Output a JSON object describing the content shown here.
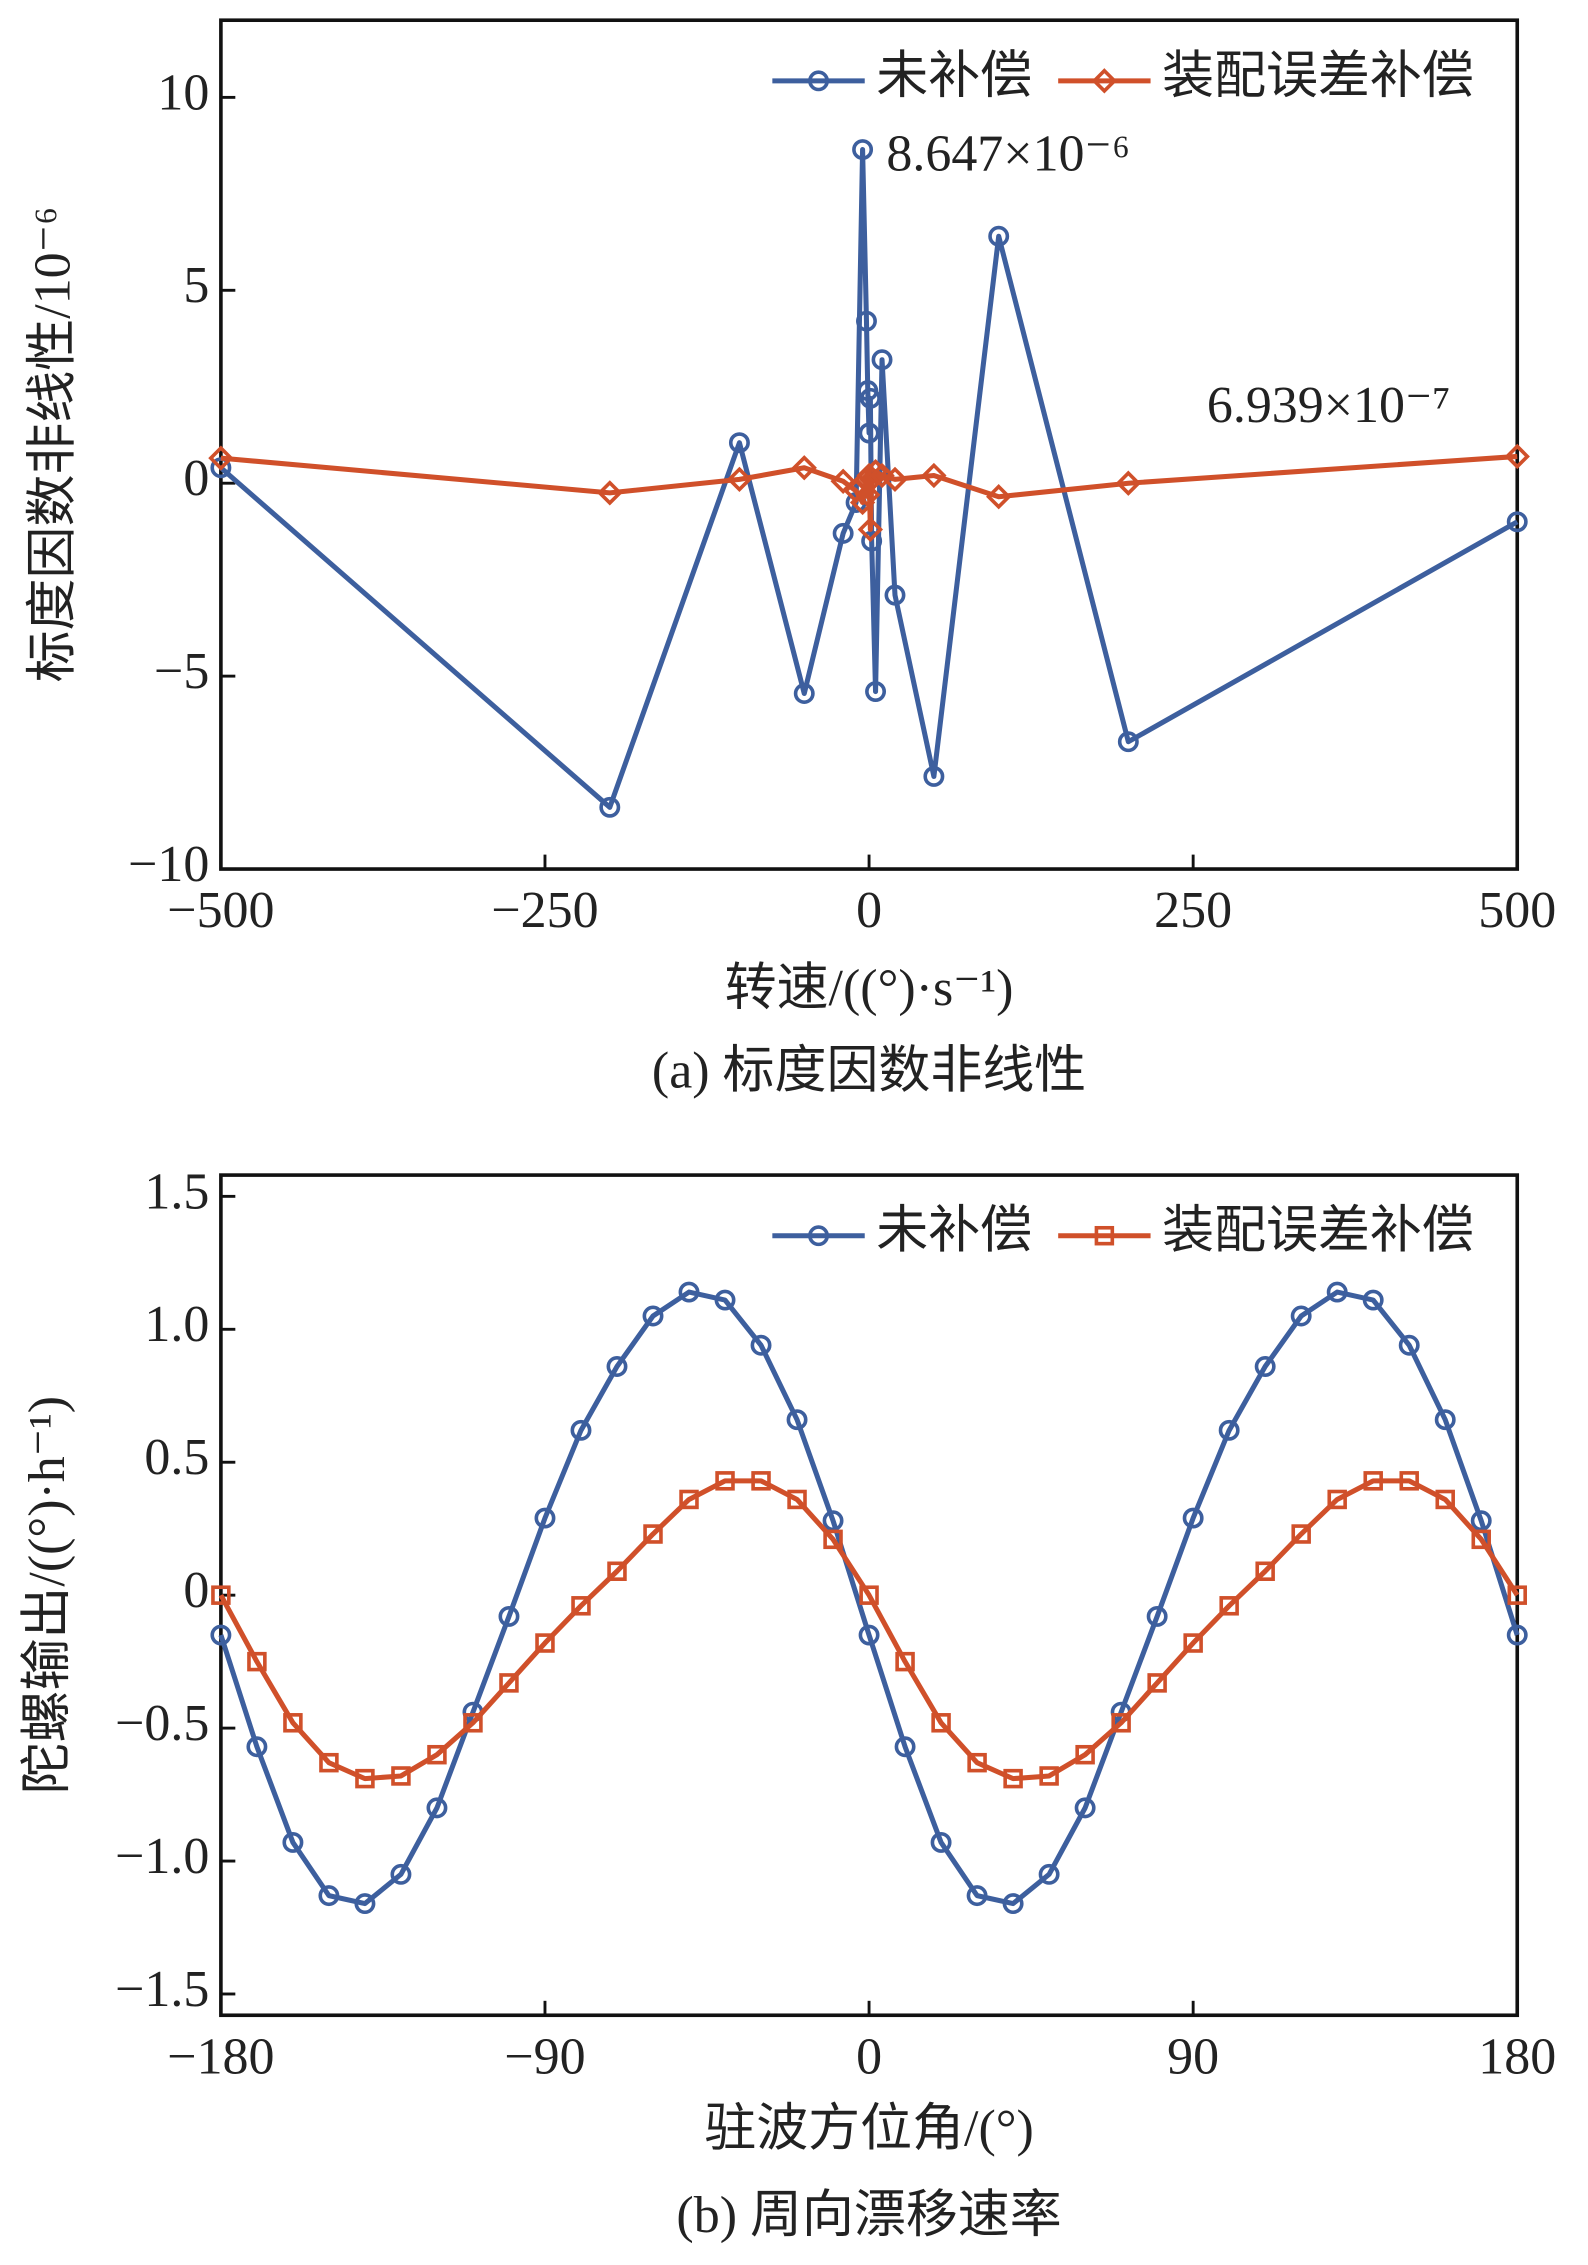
{
  "chart_data": [
    {
      "type": "line",
      "caption": "(a) 标度因数非线性",
      "x_label": "转速/((°)·s⁻¹)",
      "y_label": "标度因数非线性/10⁻⁶",
      "annotations": [
        "8.647×10⁻⁶",
        "6.939×10⁻⁷"
      ],
      "x": [
        -500,
        -200,
        -100,
        -50,
        -20,
        -10,
        -5,
        -2,
        -1,
        0,
        1,
        2,
        5,
        10,
        20,
        50,
        100,
        200,
        500
      ],
      "series": [
        {
          "name": "未补偿",
          "color": "#3d5f9e",
          "marker": "circle",
          "values": [
            0.4,
            -8.4,
            1.05,
            -5.45,
            -1.3,
            -0.5,
            8.647,
            4.2,
            2.4,
            1.3,
            2.2,
            -1.5,
            -5.4,
            3.2,
            -2.9,
            -7.6,
            6.4,
            -6.7,
            -1.0
          ]
        },
        {
          "name": "装配误差补偿",
          "color": "#d0502a",
          "marker": "diamond",
          "values": [
            0.65,
            -0.25,
            0.1,
            0.4,
            0.05,
            -0.2,
            -0.5,
            0.1,
            -0.3,
            0.2,
            -1.2,
            0.1,
            0.3,
            0.2,
            0.1,
            0.2,
            -0.35,
            0,
            0.6939
          ]
        }
      ],
      "xlim": [
        -500,
        500
      ],
      "xticks": [
        {
          "value": -500,
          "label": "−500"
        },
        {
          "value": -250,
          "label": "−250"
        },
        0,
        250,
        500
      ],
      "ylim": [
        -10,
        12
      ],
      "yticks": [
        {
          "value": -10,
          "label": "−10"
        },
        {
          "value": -5,
          "label": "−5"
        },
        0,
        5,
        10
      ],
      "legend": "upper right"
    },
    {
      "type": "line",
      "caption": "(b) 周向漂移速率",
      "x_label": "驻波方位角/(°)",
      "y_label": "陀螺输出/((°)·h⁻¹)",
      "x": [
        -180,
        -170,
        -160,
        -150,
        -140,
        -130,
        -120,
        -110,
        -100,
        -90,
        -80,
        -70,
        -60,
        -50,
        -40,
        -30,
        -20,
        -10,
        0,
        10,
        20,
        30,
        40,
        50,
        60,
        70,
        80,
        90,
        100,
        110,
        120,
        130,
        140,
        150,
        160,
        170,
        180
      ],
      "series": [
        {
          "name": "未补偿",
          "color": "#3d5f9e",
          "marker": "circle",
          "values": [
            -0.15,
            -0.57,
            -0.93,
            -1.13,
            -1.16,
            -1.05,
            -0.8,
            -0.44,
            -0.08,
            0.29,
            0.62,
            0.86,
            1.05,
            1.14,
            1.11,
            0.94,
            0.66,
            0.28,
            -0.15,
            -0.57,
            -0.93,
            -1.13,
            -1.16,
            -1.05,
            -0.8,
            -0.44,
            -0.08,
            0.29,
            0.62,
            0.86,
            1.05,
            1.14,
            1.11,
            0.94,
            0.66,
            0.28,
            -0.15
          ]
        },
        {
          "name": "装配误差补偿",
          "color": "#d0502a",
          "marker": "square",
          "values": [
            0,
            -0.25,
            -0.48,
            -0.63,
            -0.69,
            -0.68,
            -0.6,
            -0.48,
            -0.33,
            -0.18,
            -0.04,
            0.09,
            0.23,
            0.36,
            0.43,
            0.43,
            0.36,
            0.21,
            0,
            -0.25,
            -0.48,
            -0.63,
            -0.69,
            -0.68,
            -0.6,
            -0.48,
            -0.33,
            -0.18,
            -0.04,
            0.09,
            0.23,
            0.36,
            0.43,
            0.43,
            0.36,
            0.21,
            0
          ]
        }
      ],
      "xlim": [
        -180,
        180
      ],
      "xticks": [
        {
          "value": -180,
          "label": "−180"
        },
        {
          "value": -90,
          "label": "−90"
        },
        0,
        90,
        180
      ],
      "ylim": [
        -1.58,
        1.58
      ],
      "yticks": [
        {
          "value": -1.5,
          "label": "−1.5"
        },
        {
          "value": -1,
          "label": "−1.0"
        },
        {
          "value": -0.5,
          "label": "−0.5"
        },
        0,
        0.5,
        {
          "value": 1,
          "label": "1.0"
        },
        1.5
      ],
      "legend": "upper right"
    }
  ]
}
